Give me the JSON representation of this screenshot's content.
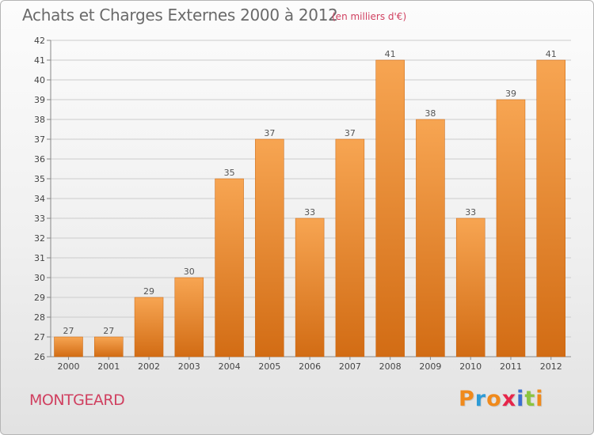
{
  "header": {
    "title": "Achats et Charges Externes 2000 à 2012",
    "subtitle": "(en milliers d'€)"
  },
  "footer": {
    "commune": "MONTGEARD",
    "brand_letters": [
      "P",
      "r",
      "o",
      "x",
      "i",
      "t",
      "i"
    ],
    "brand_colors": [
      "#f08a1c",
      "#2e9bd6",
      "#f08a1c",
      "#e6254a",
      "#3a6fcf",
      "#8bc43f",
      "#f08a1c"
    ]
  },
  "colors": {
    "bar_top": "#f7a552",
    "bar_bottom": "#d26c14",
    "grid": "#cccccc",
    "axis_text": "#444444",
    "value_text": "#555555"
  },
  "chart_data": {
    "type": "bar",
    "title": "Achats et Charges Externes 2000 à 2012",
    "subtitle": "(en milliers d'€)",
    "categories": [
      "2000",
      "2001",
      "2002",
      "2003",
      "2004",
      "2005",
      "2006",
      "2007",
      "2008",
      "2009",
      "2010",
      "2011",
      "2012"
    ],
    "values": [
      27,
      27,
      29,
      30,
      35,
      37,
      33,
      37,
      41,
      38,
      33,
      39,
      41
    ],
    "ylim": [
      26,
      42
    ],
    "yticks": [
      26,
      27,
      28,
      29,
      30,
      31,
      32,
      33,
      34,
      35,
      36,
      37,
      38,
      39,
      40,
      41,
      42
    ],
    "xlabel": "",
    "ylabel": "",
    "grid": true
  }
}
